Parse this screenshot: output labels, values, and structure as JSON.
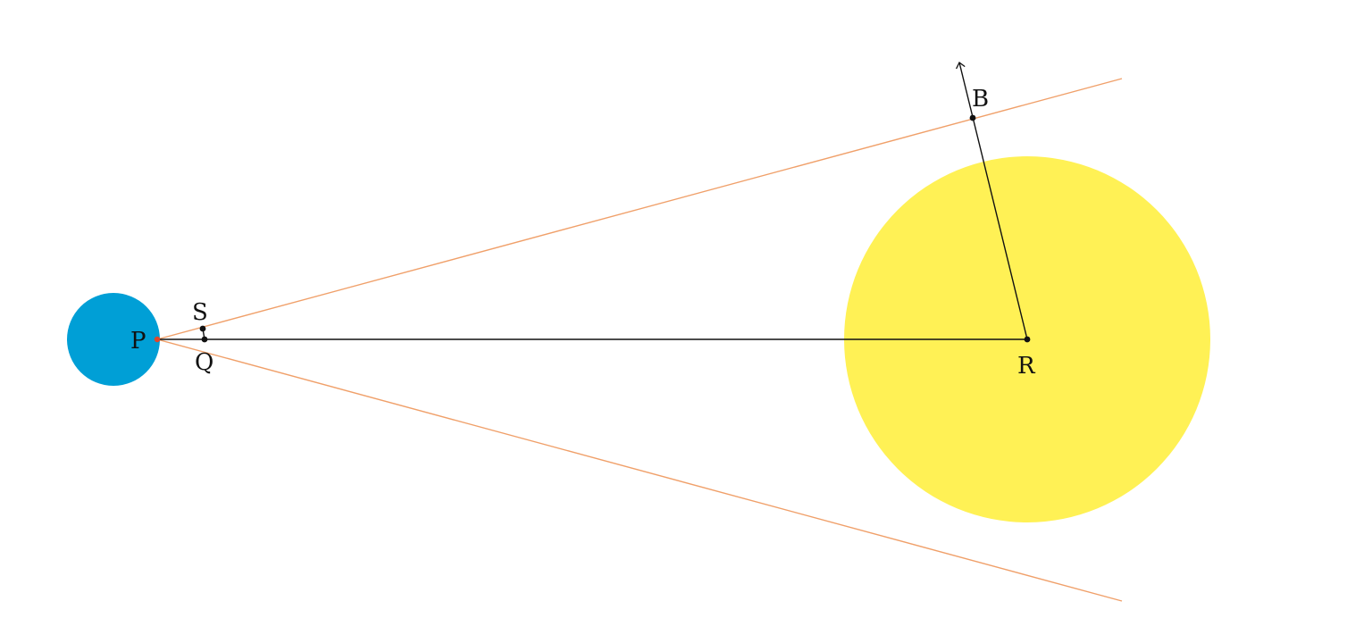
{
  "colors": {
    "earth": "#009fd6",
    "sun": "#fff155",
    "tangent_lines": "#f0a06a",
    "construction_lines": "#111111",
    "tangent_point": "#e0462a",
    "points": "#111111"
  },
  "labels": {
    "P": "P",
    "S": "S",
    "Q": "Q",
    "R": "R",
    "B": "B"
  }
}
